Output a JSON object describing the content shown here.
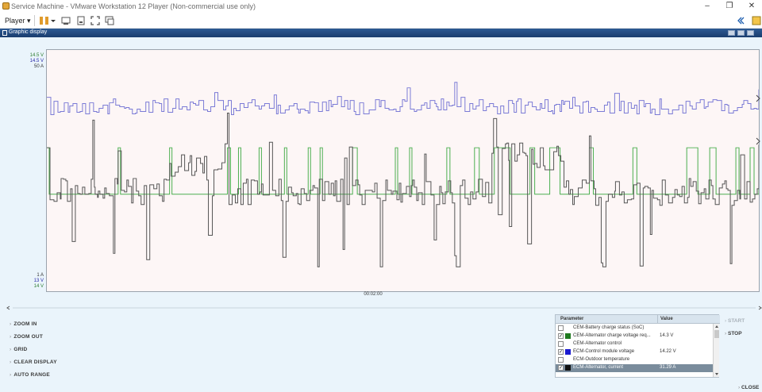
{
  "window": {
    "title": "Service Machine - VMware Workstation 12 Player (Non-commercial use only)"
  },
  "toolbar": {
    "player_label": "Player ▾"
  },
  "panel": {
    "title": "Graphic display"
  },
  "axis": {
    "top_labels": [
      "14.5 V",
      "14.5 V",
      "50 A"
    ],
    "top_colors": [
      "#2e7d32",
      "#2a2aa8",
      "#333333"
    ],
    "bottom_labels": [
      "1 A",
      "13 V",
      "14 V"
    ],
    "bottom_colors": [
      "#333333",
      "#2a2aa8",
      "#2e7d32"
    ],
    "time_label": "00:02:00"
  },
  "controls": {
    "zoom_in": "ZOOM IN",
    "zoom_out": "ZOOM OUT",
    "grid": "GRID",
    "clear_display": "CLEAR DISPLAY",
    "auto_range": "AUTO RANGE",
    "start": "START",
    "stop": "STOP",
    "close": "CLOSE"
  },
  "parameters": {
    "header_param": "Parameter",
    "header_value": "Value",
    "rows": [
      {
        "name": "CEM-Battery charge status (SoC)",
        "value": "",
        "checked": false,
        "color": ""
      },
      {
        "name": "CEM-Alternator charge voltage req...",
        "value": "14.3 V",
        "checked": true,
        "color": "#1f7a1f"
      },
      {
        "name": "CEM-Alternator control",
        "value": "",
        "checked": false,
        "color": ""
      },
      {
        "name": "ECM-Control module voltage",
        "value": "14.22 V",
        "checked": true,
        "color": "#1a1ad0"
      },
      {
        "name": "ECM-Outdoor temperature",
        "value": "",
        "checked": false,
        "color": ""
      },
      {
        "name": "ECM-Alternator, current",
        "value": "31.29 A",
        "checked": true,
        "color": "#111111",
        "selected": true
      }
    ]
  },
  "chart_data": {
    "type": "line",
    "x_range": [
      "",
      "00:02:00"
    ],
    "series": [
      {
        "name": "CEM-Alternator charge voltage req...",
        "color": "#4caf50",
        "levels": [
          14.3,
          14.5
        ]
      },
      {
        "name": "ECM-Control module voltage",
        "color": "#7b7bd6",
        "last_value": 14.22
      },
      {
        "name": "ECM-Alternator, current",
        "color": "#555555",
        "last_value": 31.29
      }
    ]
  }
}
